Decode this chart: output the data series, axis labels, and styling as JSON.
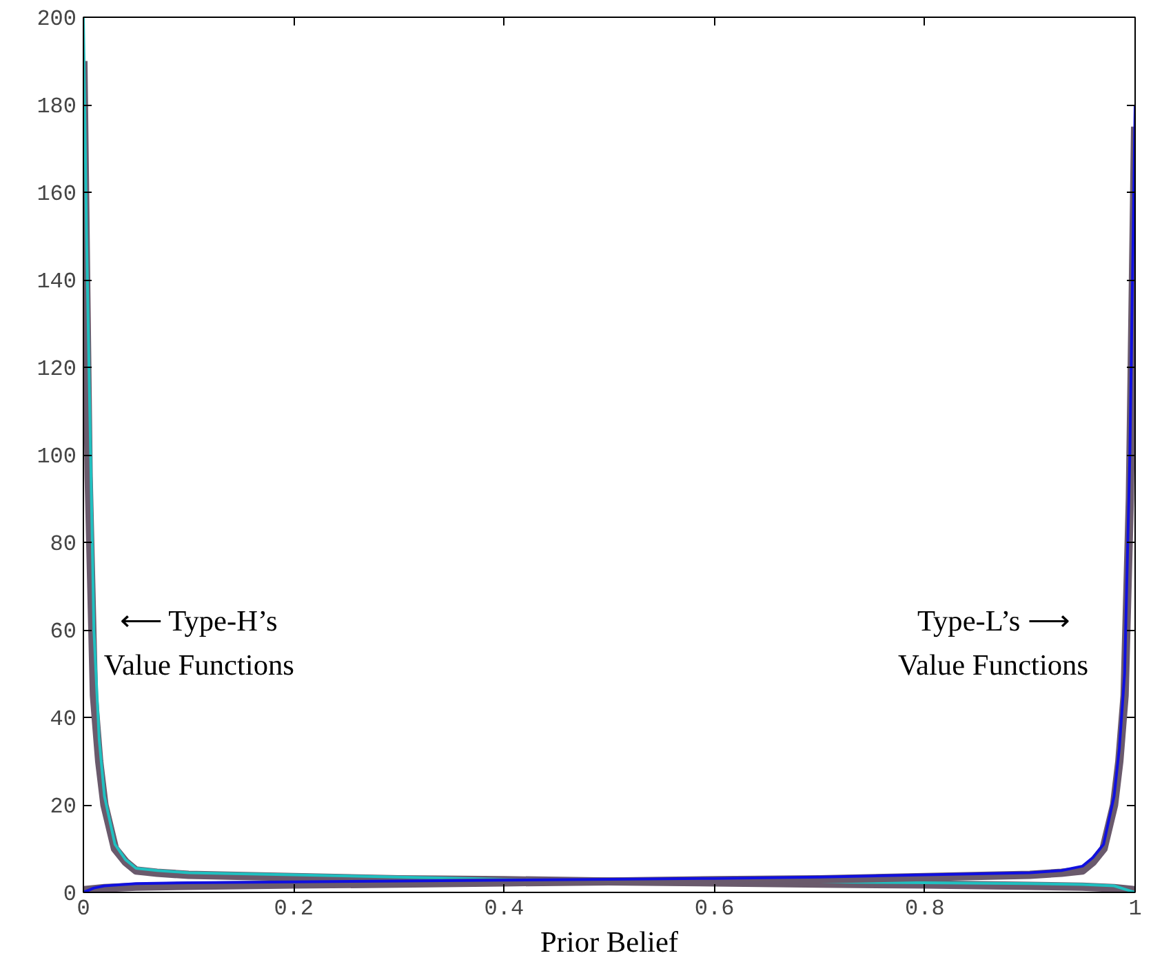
{
  "chart_data": {
    "type": "line",
    "xlabel": "Prior Belief",
    "xlim": [
      0,
      1
    ],
    "ylim": [
      0,
      200
    ],
    "xticks": [
      0,
      0.2,
      0.4,
      0.6,
      0.8,
      1
    ],
    "yticks": [
      0,
      20,
      40,
      60,
      80,
      100,
      120,
      140,
      160,
      180,
      200
    ],
    "grid": false,
    "marker": "none",
    "line_style": "solid",
    "series": [
      {
        "color": "#6a5a6c",
        "x": [
          0,
          0.005,
          0.01,
          0.015,
          0.02,
          0.03,
          0.04,
          0.05,
          0.07,
          0.1,
          0.2,
          0.3,
          0.4,
          0.5,
          0.6,
          0.7,
          0.8,
          0.9,
          0.95,
          0.98,
          1
        ],
        "values": [
          190,
          95,
          45,
          30,
          20,
          10,
          7,
          5,
          4.5,
          4,
          3.5,
          3,
          2.8,
          2.5,
          2.3,
          2,
          1.8,
          1.5,
          1.3,
          1,
          0.5
        ]
      },
      {
        "color": "#20c0c0",
        "x": [
          0,
          0.003,
          0.01,
          0.015,
          0.02,
          0.03,
          0.04,
          0.05,
          0.07,
          0.1,
          0.2,
          0.3,
          0.4,
          0.5,
          0.6,
          0.7,
          0.8,
          0.9,
          0.95,
          0.98,
          1
        ],
        "values": [
          200,
          150,
          60,
          35,
          22,
          11,
          7.5,
          5.5,
          5,
          4.5,
          4,
          3.5,
          3,
          2.8,
          2.6,
          2.4,
          2.2,
          2,
          1.8,
          1.5,
          0
        ]
      },
      {
        "color": "#6a5a6c",
        "x": [
          0,
          0.02,
          0.05,
          0.1,
          0.2,
          0.3,
          0.4,
          0.5,
          0.6,
          0.7,
          0.8,
          0.9,
          0.93,
          0.95,
          0.96,
          0.97,
          0.98,
          0.985,
          0.99,
          0.995,
          1
        ],
        "values": [
          0.5,
          1,
          1.3,
          1.5,
          1.8,
          2,
          2.3,
          2.5,
          2.8,
          3,
          3.5,
          4,
          4.5,
          5,
          7,
          10,
          20,
          30,
          45,
          90,
          175
        ]
      },
      {
        "color": "#1010e0",
        "x": [
          0,
          0.01,
          0.02,
          0.05,
          0.1,
          0.2,
          0.3,
          0.4,
          0.5,
          0.6,
          0.7,
          0.8,
          0.9,
          0.93,
          0.95,
          0.96,
          0.97,
          0.98,
          0.985,
          0.99,
          0.995,
          1
        ],
        "values": [
          0,
          1,
          1.5,
          2,
          2.2,
          2.4,
          2.6,
          2.8,
          3,
          3.2,
          3.5,
          4,
          4.5,
          5,
          6,
          8,
          11,
          22,
          33,
          50,
          100,
          180
        ]
      }
    ],
    "annotations": [
      "⟵ Type-H’s\nValue Functions",
      "Type-L’s ⟶\nValue Functions"
    ]
  }
}
